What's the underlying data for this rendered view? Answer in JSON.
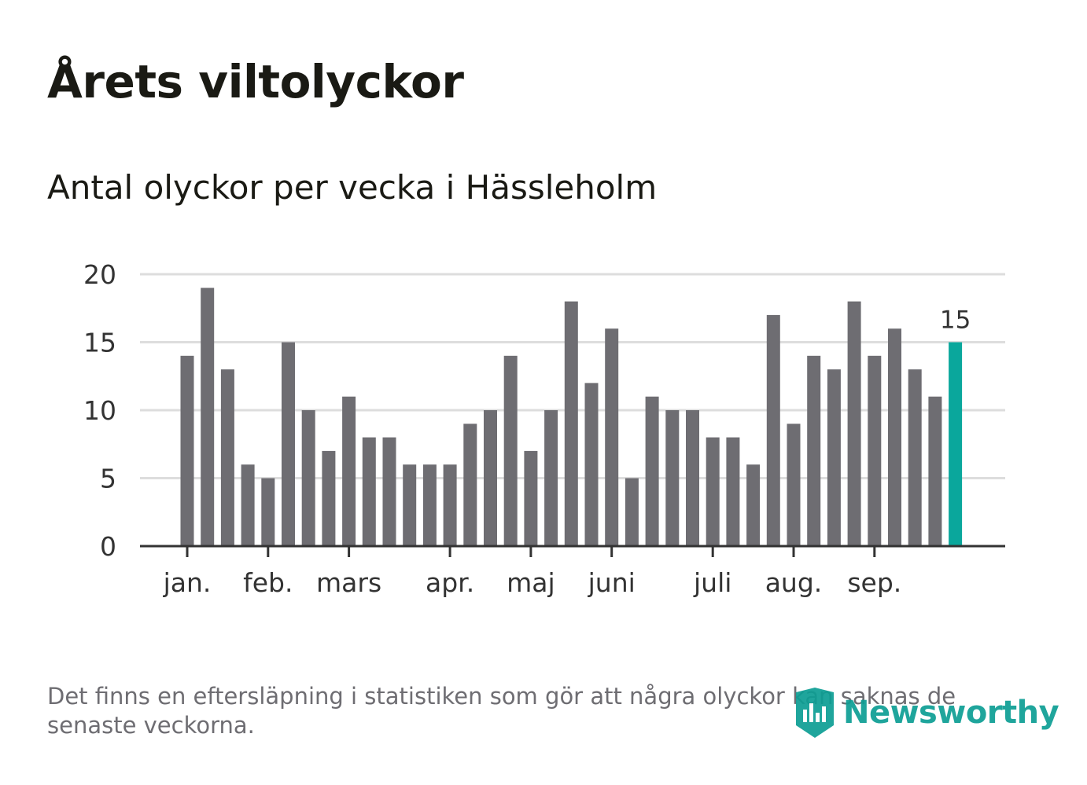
{
  "title": "Årets viltolyckor",
  "subtitle": "Antal olyckor per vecka i Hässleholm",
  "footnote": "Det finns en eftersläpning i statistiken som gör att några olyckor kan saknas de senaste veckorna.",
  "logo": {
    "text": "Newsworthy",
    "icon": "newsworthy-logo-icon"
  },
  "colors": {
    "bar": "#6e6d72",
    "highlight": "#0aa79c",
    "grid": "#dddddd",
    "axis": "#333333"
  },
  "chart_data": {
    "type": "bar",
    "title": "Årets viltolyckor",
    "subtitle": "Antal olyckor per vecka i Hässleholm",
    "xlabel": "",
    "ylabel": "",
    "ylim": [
      0,
      20
    ],
    "yticks": [
      0,
      5,
      10,
      15,
      20
    ],
    "grid": true,
    "x": [
      1,
      2,
      3,
      4,
      5,
      6,
      7,
      8,
      9,
      10,
      11,
      12,
      13,
      14,
      15,
      16,
      17,
      18,
      19,
      20,
      21,
      22,
      23,
      24,
      25,
      26,
      27,
      28,
      29,
      30,
      31,
      32,
      33,
      34,
      35,
      36,
      37,
      38,
      39
    ],
    "values": [
      14,
      19,
      13,
      6,
      5,
      15,
      10,
      7,
      11,
      8,
      8,
      6,
      6,
      6,
      9,
      10,
      14,
      7,
      10,
      18,
      12,
      16,
      5,
      11,
      10,
      10,
      8,
      8,
      6,
      17,
      9,
      14,
      13,
      18,
      14,
      16,
      13,
      11,
      15
    ],
    "highlight_index": 38,
    "highlight_label": "15",
    "month_ticks": [
      {
        "label": "jan.",
        "week": 1
      },
      {
        "label": "feb.",
        "week": 5
      },
      {
        "label": "mars",
        "week": 9
      },
      {
        "label": "apr.",
        "week": 14
      },
      {
        "label": "maj",
        "week": 18
      },
      {
        "label": "juni",
        "week": 22
      },
      {
        "label": "juli",
        "week": 27
      },
      {
        "label": "aug.",
        "week": 31
      },
      {
        "label": "sep.",
        "week": 35
      }
    ]
  }
}
